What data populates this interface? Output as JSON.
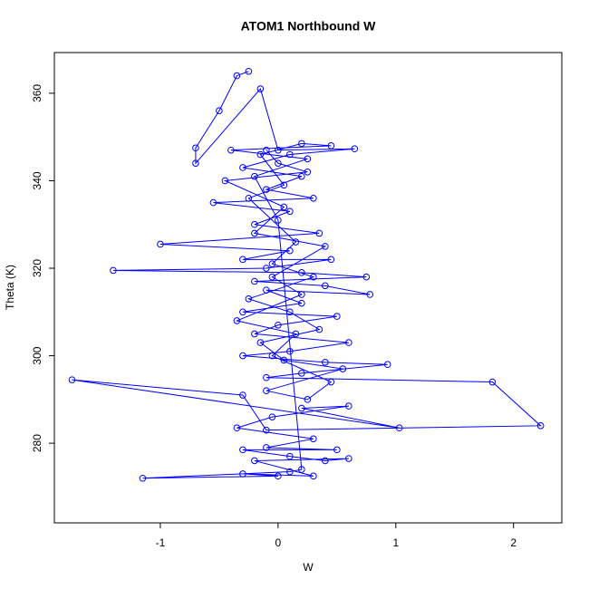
{
  "chart_data": {
    "type": "line",
    "title": "ATOM1 Northbound W",
    "x_label": "W",
    "y_label": "Theta (K)",
    "color": "#0000ff",
    "markers": true,
    "grid": false,
    "xlim": [
      -1.9,
      2.41
    ],
    "ylim": [
      261.8,
      369.3
    ],
    "xticks": [
      -1,
      0,
      1,
      2
    ],
    "yticks": [
      280,
      300,
      320,
      340,
      360
    ],
    "x": [
      -0.25,
      -0.35,
      -0.5,
      -0.7,
      -0.7,
      -0.15,
      0.0,
      0.65,
      0.1,
      -0.3,
      0.2,
      -0.1,
      0.3,
      -0.55,
      0.1,
      -0.2,
      0.35,
      -1.0,
      0.1,
      -0.3,
      0.45,
      -0.1,
      -1.4,
      0.2,
      0.75,
      -0.2,
      0.4,
      0.78,
      -0.1,
      0.2,
      -0.3,
      0.5,
      0.0,
      -0.2,
      0.6,
      0.1,
      -0.3,
      0.4,
      0.93,
      0.2,
      -0.1,
      1.82,
      2.23,
      -0.1,
      -0.3,
      -1.75,
      1.03,
      0.2,
      0.6,
      -0.05,
      -0.35,
      0.3,
      -0.1,
      0.5,
      -0.3,
      0.1,
      0.4,
      0.6,
      -0.2,
      0.3,
      -0.3,
      0.0,
      -1.15,
      0.1,
      0.2,
      0.0,
      -0.2,
      0.25,
      -0.4,
      0.45,
      0.2,
      -0.15,
      0.05,
      -0.25,
      0.15,
      -0.05,
      0.3,
      -0.25,
      0.1,
      0.35,
      -0.15,
      0.05,
      0.55,
      -0.1,
      0.25,
      0.45,
      -0.05,
      0.15,
      -0.35,
      0.2,
      -0.05,
      0.4,
      -0.2,
      0.05,
      -0.45,
      0.25,
      0.0,
      -0.1
    ],
    "values": [
      365,
      364,
      356,
      347.5,
      344,
      361,
      347,
      347.3,
      346,
      343,
      341,
      338,
      336,
      335,
      333,
      330,
      328,
      325.5,
      324,
      322,
      322,
      320,
      319.5,
      319,
      318,
      317,
      316,
      314,
      315,
      312,
      310,
      309,
      307,
      305,
      303,
      301,
      300,
      298.5,
      298,
      296,
      295,
      294,
      284,
      283,
      291,
      294.5,
      283.5,
      288,
      288.5,
      286,
      283.5,
      281,
      279,
      278.5,
      278.5,
      277,
      276,
      276.5,
      276,
      272.5,
      273,
      272.5,
      272,
      273.5,
      274,
      331,
      341,
      345,
      347,
      348,
      348.5,
      346,
      339,
      336,
      326,
      321,
      318,
      313,
      310,
      306,
      303,
      299,
      297,
      292,
      290,
      294,
      300,
      305,
      308,
      314,
      318,
      325,
      328,
      334,
      340,
      342,
      344,
      347
    ]
  }
}
